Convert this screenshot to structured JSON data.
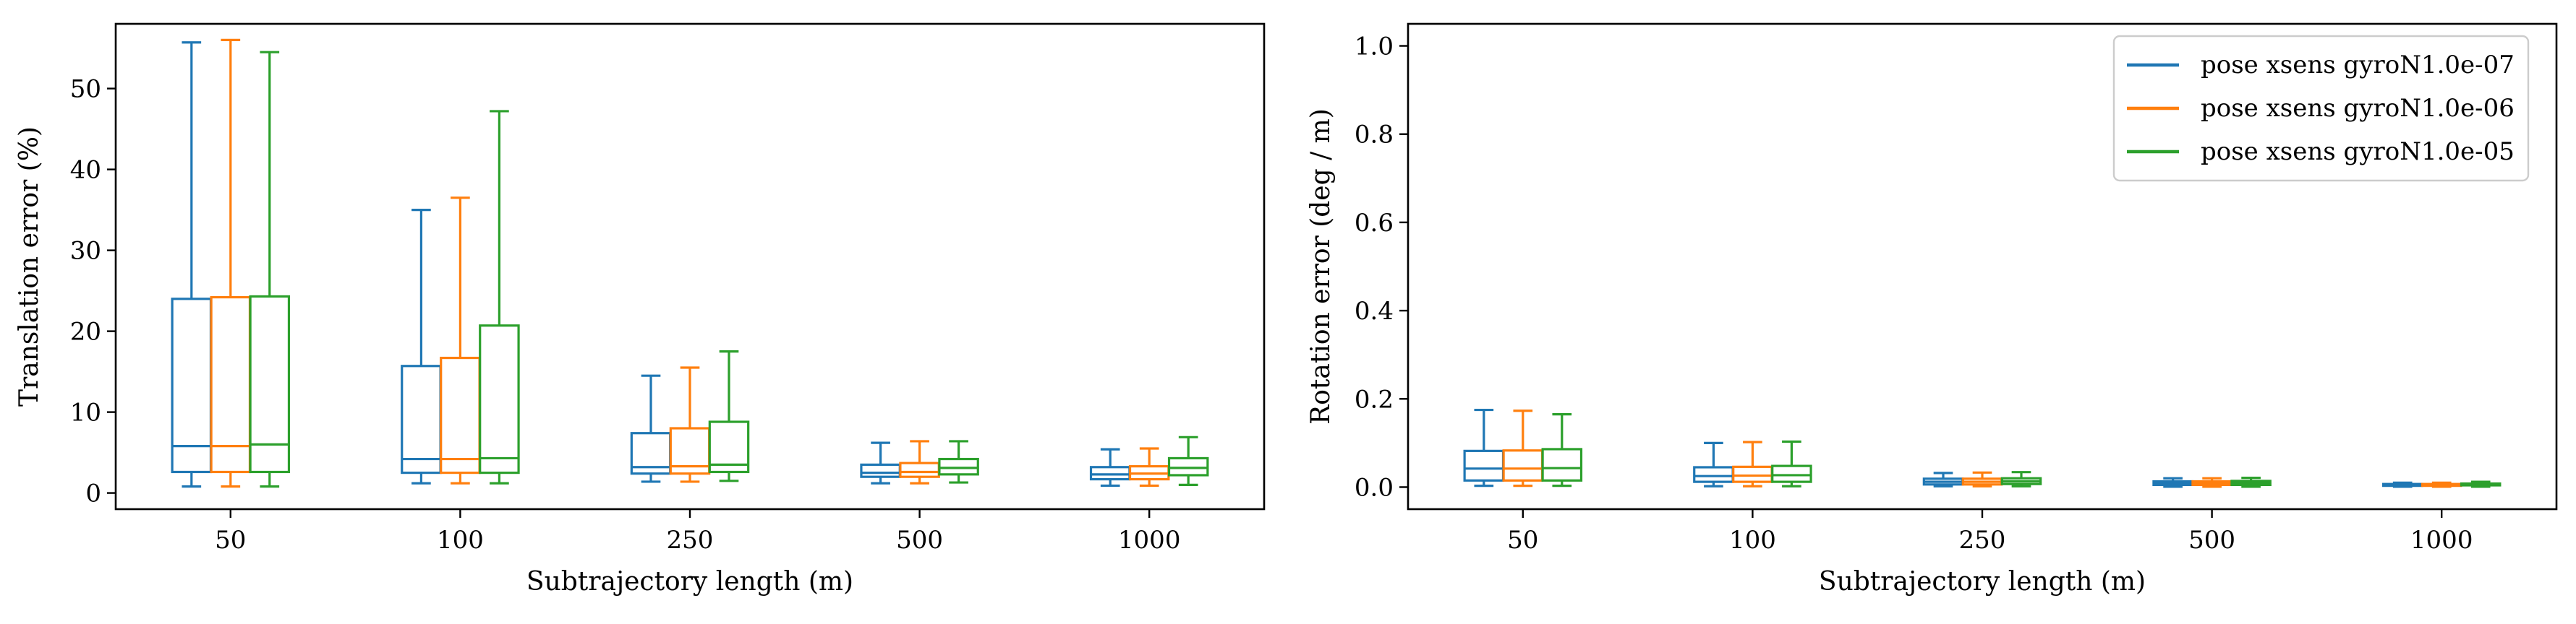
{
  "colors": {
    "series": [
      "#1f77b4",
      "#ff7f0e",
      "#2ca02c"
    ],
    "axes": "#000000",
    "legend_border": "#cccccc"
  },
  "legend": {
    "placement": "upper-right of right panel",
    "entries": [
      "pose xsens gyroN1.0e-07",
      "pose xsens gyroN1.0e-06",
      "pose xsens gyroN1.0e-05"
    ]
  },
  "chart_data": [
    {
      "type": "box",
      "xlabel": "Subtrajectory length (m)",
      "ylabel": "Translation error (%)",
      "categories": [
        "50",
        "100",
        "250",
        "500",
        "1000"
      ],
      "ylim": [
        -2,
        58
      ],
      "yticks": [
        0,
        10,
        20,
        30,
        40,
        50
      ],
      "grid": false,
      "series": [
        {
          "name": "pose xsens gyroN1.0e-07",
          "boxes": [
            {
              "whislo": 0.8,
              "q1": 2.6,
              "med": 5.8,
              "q3": 24.0,
              "whishi": 55.7
            },
            {
              "whislo": 1.2,
              "q1": 2.5,
              "med": 4.2,
              "q3": 15.7,
              "whishi": 35.0
            },
            {
              "whislo": 1.4,
              "q1": 2.4,
              "med": 3.2,
              "q3": 7.4,
              "whishi": 14.5
            },
            {
              "whislo": 1.2,
              "q1": 2.0,
              "med": 2.5,
              "q3": 3.5,
              "whishi": 6.2
            },
            {
              "whislo": 0.9,
              "q1": 1.7,
              "med": 2.3,
              "q3": 3.2,
              "whishi": 5.4
            }
          ]
        },
        {
          "name": "pose xsens gyroN1.0e-06",
          "boxes": [
            {
              "whislo": 0.8,
              "q1": 2.6,
              "med": 5.8,
              "q3": 24.2,
              "whishi": 56.0
            },
            {
              "whislo": 1.2,
              "q1": 2.5,
              "med": 4.2,
              "q3": 16.7,
              "whishi": 36.5
            },
            {
              "whislo": 1.4,
              "q1": 2.4,
              "med": 3.3,
              "q3": 8.0,
              "whishi": 15.5
            },
            {
              "whislo": 1.2,
              "q1": 2.0,
              "med": 2.6,
              "q3": 3.7,
              "whishi": 6.4
            },
            {
              "whislo": 0.9,
              "q1": 1.7,
              "med": 2.4,
              "q3": 3.3,
              "whishi": 5.5
            }
          ]
        },
        {
          "name": "pose xsens gyroN1.0e-05",
          "boxes": [
            {
              "whislo": 0.8,
              "q1": 2.6,
              "med": 6.0,
              "q3": 24.3,
              "whishi": 54.5
            },
            {
              "whislo": 1.2,
              "q1": 2.5,
              "med": 4.3,
              "q3": 20.7,
              "whishi": 47.2
            },
            {
              "whislo": 1.5,
              "q1": 2.6,
              "med": 3.5,
              "q3": 8.8,
              "whishi": 17.5
            },
            {
              "whislo": 1.3,
              "q1": 2.3,
              "med": 3.1,
              "q3": 4.2,
              "whishi": 6.4
            },
            {
              "whislo": 1.0,
              "q1": 2.2,
              "med": 3.1,
              "q3": 4.3,
              "whishi": 6.9
            }
          ]
        }
      ]
    },
    {
      "type": "box",
      "xlabel": "Subtrajectory length (m)",
      "ylabel": "Rotation error (deg / m)",
      "categories": [
        "50",
        "100",
        "250",
        "500",
        "1000"
      ],
      "ylim": [
        -0.05,
        1.05
      ],
      "yticks": [
        0.0,
        0.2,
        0.4,
        0.6,
        0.8,
        1.0
      ],
      "grid": false,
      "series": [
        {
          "name": "pose xsens gyroN1.0e-07",
          "boxes": [
            {
              "whislo": 0.003,
              "q1": 0.015,
              "med": 0.042,
              "q3": 0.082,
              "whishi": 0.175
            },
            {
              "whislo": 0.002,
              "q1": 0.012,
              "med": 0.025,
              "q3": 0.045,
              "whishi": 0.1
            },
            {
              "whislo": 0.002,
              "q1": 0.006,
              "med": 0.012,
              "q3": 0.019,
              "whishi": 0.032
            },
            {
              "whislo": 0.001,
              "q1": 0.005,
              "med": 0.009,
              "q3": 0.013,
              "whishi": 0.02
            },
            {
              "whislo": 0.001,
              "q1": 0.003,
              "med": 0.005,
              "q3": 0.007,
              "whishi": 0.01
            }
          ]
        },
        {
          "name": "pose xsens gyroN1.0e-06",
          "boxes": [
            {
              "whislo": 0.003,
              "q1": 0.015,
              "med": 0.042,
              "q3": 0.083,
              "whishi": 0.173
            },
            {
              "whislo": 0.002,
              "q1": 0.012,
              "med": 0.026,
              "q3": 0.046,
              "whishi": 0.102
            },
            {
              "whislo": 0.002,
              "q1": 0.006,
              "med": 0.012,
              "q3": 0.019,
              "whishi": 0.033
            },
            {
              "whislo": 0.001,
              "q1": 0.005,
              "med": 0.009,
              "q3": 0.013,
              "whishi": 0.02
            },
            {
              "whislo": 0.001,
              "q1": 0.003,
              "med": 0.005,
              "q3": 0.007,
              "whishi": 0.01
            }
          ]
        },
        {
          "name": "pose xsens gyroN1.0e-05",
          "boxes": [
            {
              "whislo": 0.003,
              "q1": 0.015,
              "med": 0.043,
              "q3": 0.086,
              "whishi": 0.165
            },
            {
              "whislo": 0.002,
              "q1": 0.012,
              "med": 0.027,
              "q3": 0.048,
              "whishi": 0.103
            },
            {
              "whislo": 0.002,
              "q1": 0.007,
              "med": 0.013,
              "q3": 0.02,
              "whishi": 0.034
            },
            {
              "whislo": 0.001,
              "q1": 0.005,
              "med": 0.01,
              "q3": 0.014,
              "whishi": 0.021
            },
            {
              "whislo": 0.001,
              "q1": 0.004,
              "med": 0.006,
              "q3": 0.008,
              "whishi": 0.012
            }
          ]
        }
      ]
    }
  ]
}
